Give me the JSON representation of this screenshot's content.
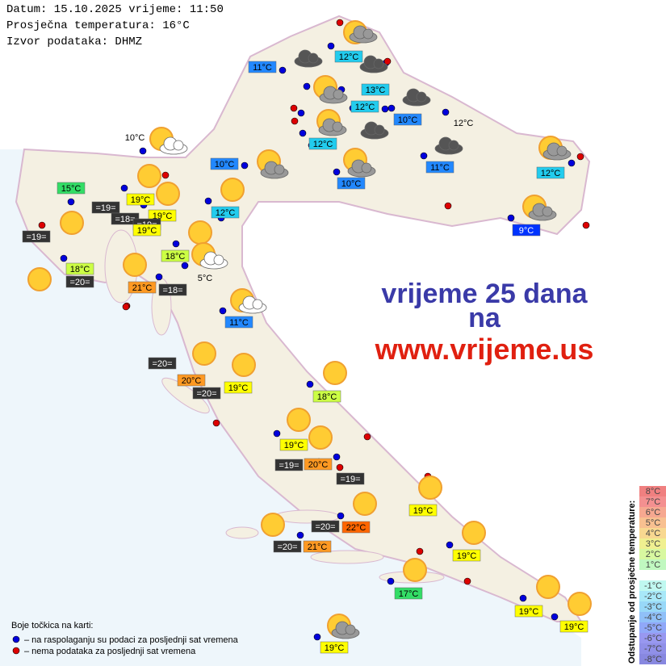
{
  "header": {
    "date_line": "Datum: 15.10.2025 vrijeme: 11:50",
    "avg_line": "Prosječna temperatura: 16°C",
    "source_line": "Izvor podataka: DHMZ"
  },
  "stations": [
    "11°C",
    "12°C",
    "13°C",
    "12°C",
    "10°C",
    "12°C",
    "12°C",
    "10°C",
    "10°C",
    "11°C",
    "12°C",
    "10°C",
    "15°C",
    "19°C",
    "=19=",
    "19°C",
    "=18=",
    "=19=",
    "19°C",
    "12°C",
    "=19=",
    "9°C",
    "18°C",
    "5°C",
    "18°C",
    "=20=",
    "21°C",
    "=18=",
    "11°C",
    "=20=",
    "20°C",
    "19°C",
    "=20=",
    "18°C",
    "19°C",
    "=19=",
    "20°C",
    "=19=",
    "19°C",
    "=20=",
    "22°C",
    "19°C",
    "=20=",
    "21°C",
    "17°C",
    "19°C",
    "19°C",
    "19°C"
  ],
  "promo": [
    "vrijeme 25 dana",
    "na",
    "www.vrijeme.us"
  ],
  "dot_legend": {
    "title": "Boje točkica na karti:",
    "available": "– na raspolaganju su podaci za posljednji sat vremena",
    "missing": "– nema podataka za posljednji sat vremena"
  },
  "scale": {
    "title": "Odstupanje od prosječne temperature:",
    "labels": [
      "8°C",
      "7°C",
      "6°C",
      "5°C",
      "4°C",
      "3°C",
      "2°C",
      "1°C",
      "-1°C",
      "-2°C",
      "-3°C",
      "-4°C",
      "-5°C",
      "-6°C",
      "-7°C",
      "-8°C"
    ]
  }
}
